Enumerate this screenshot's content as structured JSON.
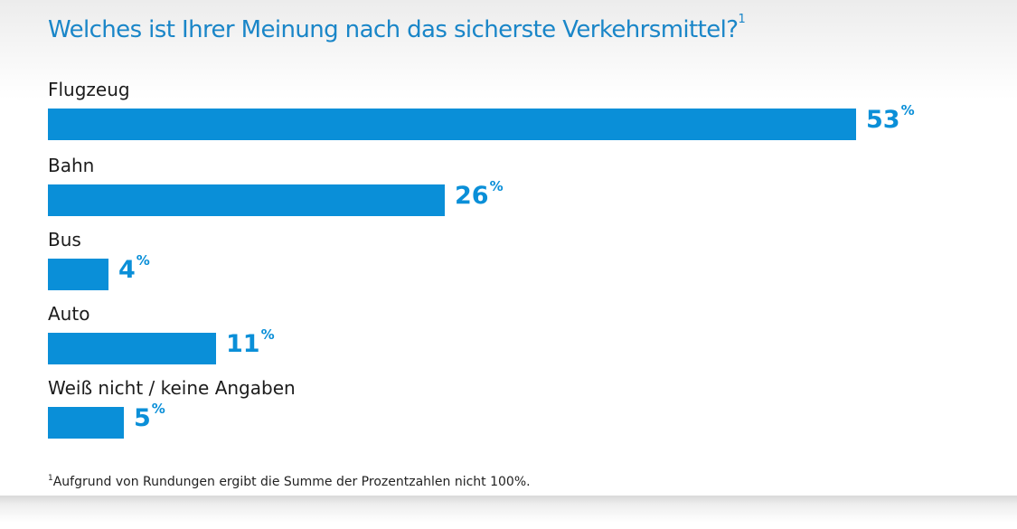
{
  "title": {
    "text": "Welches ist Ihrer Meinung nach das sicherste Verkehrsmittel?",
    "footnote_mark": "1"
  },
  "chart_data": {
    "type": "bar",
    "orientation": "horizontal",
    "title": "Welches ist Ihrer Meinung nach das sicherste Verkehrsmittel?",
    "categories": [
      "Flugzeug",
      "Bahn",
      "Bus",
      "Auto",
      "Weiß nicht / keine Angaben"
    ],
    "values": [
      53,
      26,
      4,
      11,
      5
    ],
    "unit": "%",
    "xlim": [
      0,
      53
    ]
  },
  "footnote": {
    "mark": "1",
    "text": "Aufgrund von Rundungen ergibt die Summe der Prozentzahlen nicht 100%."
  },
  "colors": {
    "bar": "#0a8fd8",
    "title": "#1a86c8"
  }
}
